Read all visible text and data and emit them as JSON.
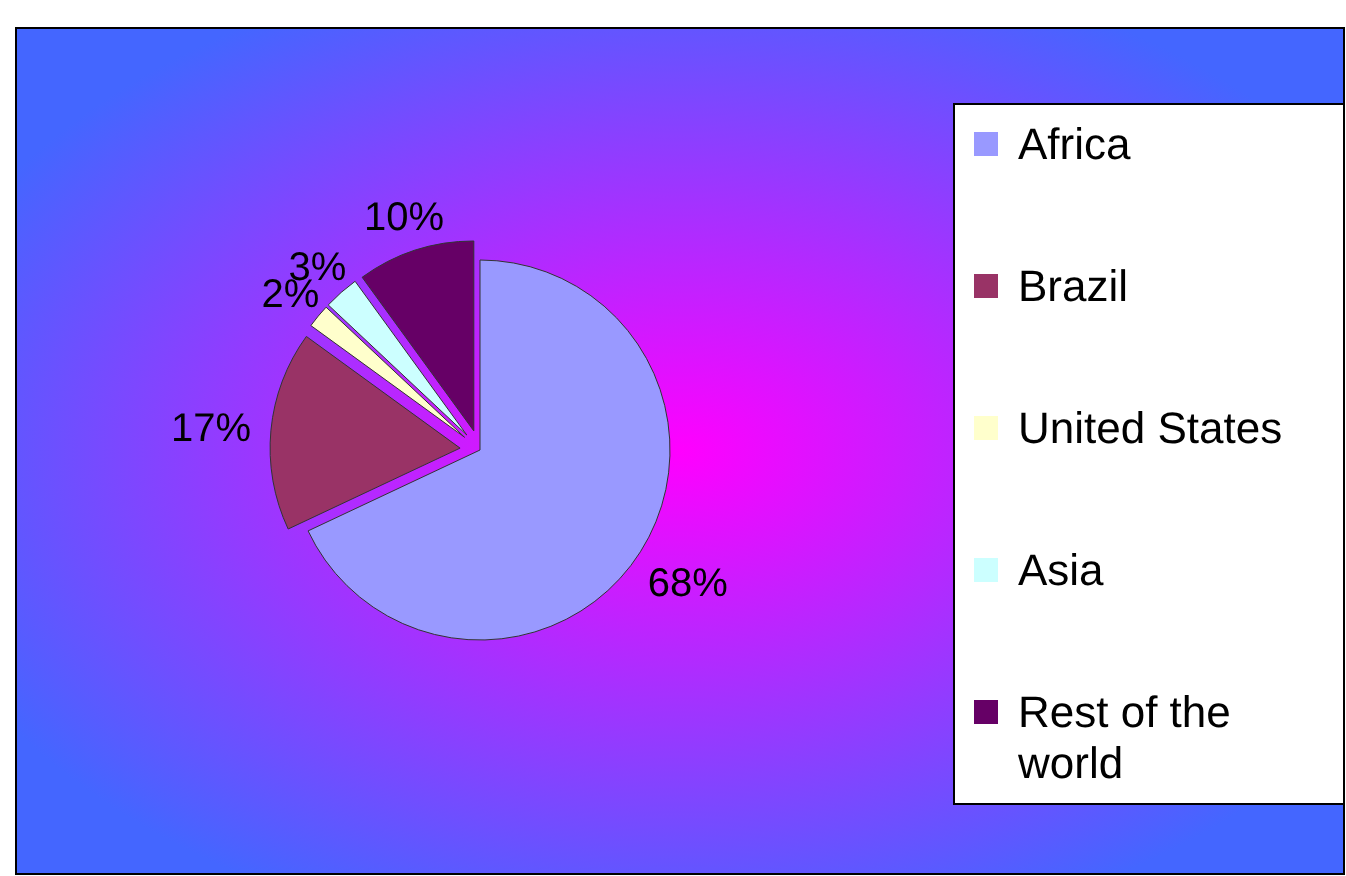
{
  "chart_data": {
    "type": "pie",
    "categories": [
      "Africa",
      "Brazil",
      "United States",
      "Asia",
      "Rest of the world"
    ],
    "values": [
      68,
      17,
      2,
      3,
      10
    ],
    "colors": [
      "#9999ff",
      "#993366",
      "#ffffcc",
      "#ccffff",
      "#660066"
    ],
    "value_labels": [
      "68%",
      "17%",
      "2%",
      "3%",
      "10%"
    ],
    "legend": "right"
  }
}
